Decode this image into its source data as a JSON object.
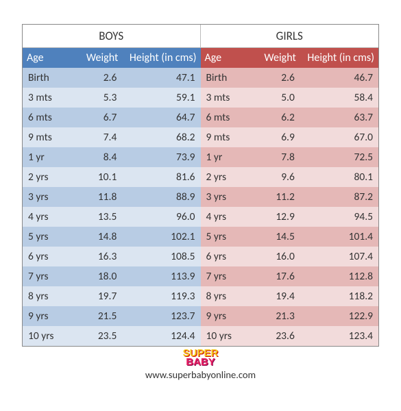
{
  "boys": {
    "title": "BOYS",
    "columns": {
      "age": "Age",
      "weight": "Weight",
      "height": "Height (in cms)"
    },
    "rows": [
      [
        "Birth",
        "2.6",
        "47.1"
      ],
      [
        "3 mts",
        "5.3",
        "59.1"
      ],
      [
        "6 mts",
        "6.7",
        "64.7"
      ],
      [
        "9 mts",
        "7.4",
        "68.2"
      ],
      [
        "1 yr",
        "8.4",
        "73.9"
      ],
      [
        "2 yrs",
        "10.1",
        "81.6"
      ],
      [
        "3 yrs",
        "11.8",
        "88.9"
      ],
      [
        "4 yrs",
        "13.5",
        "96.0"
      ],
      [
        "5 yrs",
        "14.8",
        "102.1"
      ],
      [
        "6 yrs",
        "16.3",
        "108.5"
      ],
      [
        "7 yrs",
        "18.0",
        "113.9"
      ],
      [
        "8 yrs",
        "19.7",
        "119.3"
      ],
      [
        "9 yrs",
        "21.5",
        "123.7"
      ],
      [
        "10 yrs",
        "23.5",
        "124.4"
      ]
    ]
  },
  "girls": {
    "title": "GIRLS",
    "columns": {
      "age": "Age",
      "weight": "Weight",
      "height": "Height (in cms)"
    },
    "rows": [
      [
        "Birth",
        "2.6",
        "46.7"
      ],
      [
        "3 mts",
        "5.0",
        "58.4"
      ],
      [
        "6 mts",
        "6.2",
        "63.7"
      ],
      [
        "9 mts",
        "6.9",
        "67.0"
      ],
      [
        "1 yr",
        "7.8",
        "72.5"
      ],
      [
        "2 yrs",
        "9.6",
        "80.1"
      ],
      [
        "3 yrs",
        "11.2",
        "87.2"
      ],
      [
        "4 yrs",
        "12.9",
        "94.5"
      ],
      [
        "5 yrs",
        "14.5",
        "101.4"
      ],
      [
        "6 yrs",
        "16.0",
        "107.4"
      ],
      [
        "7 yrs",
        "17.6",
        "112.8"
      ],
      [
        "8 yrs",
        "19.4",
        "118.2"
      ],
      [
        "9 yrs",
        "21.3",
        "122.9"
      ],
      [
        "10 yrs",
        "23.6",
        "123.4"
      ]
    ]
  },
  "logo": {
    "line1": "SUPER",
    "line2": "BABY"
  },
  "site_url": "www.superbabyonline.com"
}
